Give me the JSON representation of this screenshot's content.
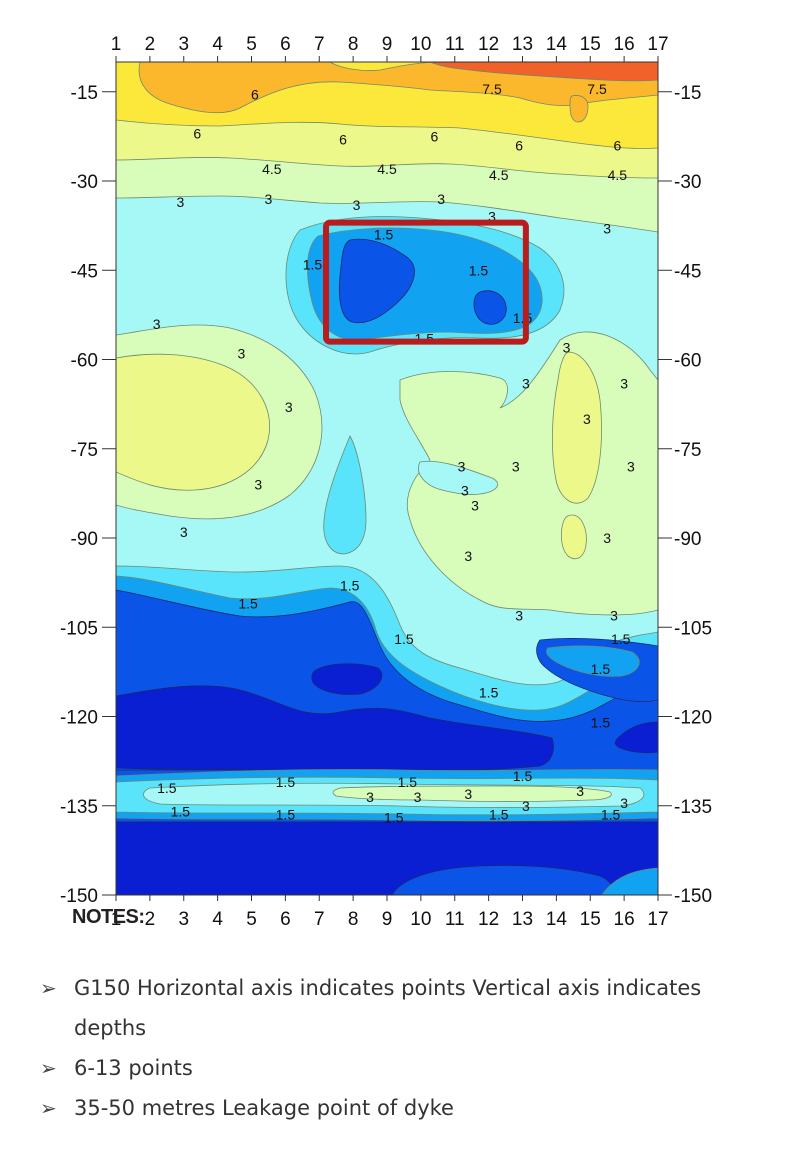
{
  "chart_data": {
    "type": "heatmap",
    "subtype": "contour",
    "x_ticks": [
      "1",
      "2",
      "3",
      "4",
      "5",
      "6",
      "7",
      "8",
      "9",
      "10",
      "11",
      "12",
      "13",
      "14",
      "15",
      "16",
      "17"
    ],
    "y_ticks": [
      "-15",
      "-30",
      "-45",
      "-60",
      "-75",
      "-90",
      "-105",
      "-120",
      "-135",
      "-150"
    ],
    "xlim": [
      1,
      17
    ],
    "ylim": [
      -150,
      -10
    ],
    "contour_levels": [
      1.5,
      3,
      4.5,
      6,
      7.5
    ],
    "contour_labels": [
      {
        "x": 12.1,
        "y": -14.5,
        "text": "7.5"
      },
      {
        "x": 15.2,
        "y": -14.5,
        "text": "7.5"
      },
      {
        "x": 5.1,
        "y": -15.5,
        "text": "6"
      },
      {
        "x": 3.4,
        "y": -22,
        "text": "6"
      },
      {
        "x": 7.7,
        "y": -23,
        "text": "6"
      },
      {
        "x": 10.4,
        "y": -22.5,
        "text": "6"
      },
      {
        "x": 12.9,
        "y": -24,
        "text": "6"
      },
      {
        "x": 15.8,
        "y": -24,
        "text": "6"
      },
      {
        "x": 5.6,
        "y": -28,
        "text": "4.5"
      },
      {
        "x": 9.0,
        "y": -28,
        "text": "4.5"
      },
      {
        "x": 12.3,
        "y": -29,
        "text": "4.5"
      },
      {
        "x": 15.8,
        "y": -29,
        "text": "4.5"
      },
      {
        "x": 2.9,
        "y": -33.5,
        "text": "3"
      },
      {
        "x": 5.5,
        "y": -33,
        "text": "3"
      },
      {
        "x": 8.1,
        "y": -34,
        "text": "3"
      },
      {
        "x": 10.6,
        "y": -33,
        "text": "3"
      },
      {
        "x": 12.1,
        "y": -36,
        "text": "3"
      },
      {
        "x": 15.5,
        "y": -38,
        "text": "3"
      },
      {
        "x": 8.9,
        "y": -39,
        "text": "1.5"
      },
      {
        "x": 6.8,
        "y": -44,
        "text": "1.5"
      },
      {
        "x": 11.7,
        "y": -45,
        "text": "1.5"
      },
      {
        "x": 13.0,
        "y": -53,
        "text": "1.5"
      },
      {
        "x": 10.1,
        "y": -56.5,
        "text": "1.5"
      },
      {
        "x": 2.2,
        "y": -54,
        "text": "3"
      },
      {
        "x": 4.7,
        "y": -59,
        "text": "3"
      },
      {
        "x": 6.1,
        "y": -68,
        "text": "3"
      },
      {
        "x": 14.3,
        "y": -58,
        "text": "3"
      },
      {
        "x": 13.1,
        "y": -64,
        "text": "3"
      },
      {
        "x": 14.9,
        "y": -70,
        "text": "3"
      },
      {
        "x": 16.0,
        "y": -64,
        "text": "3"
      },
      {
        "x": 16.2,
        "y": -78,
        "text": "3"
      },
      {
        "x": 11.2,
        "y": -78,
        "text": "3"
      },
      {
        "x": 12.8,
        "y": -78,
        "text": "3"
      },
      {
        "x": 11.3,
        "y": -82,
        "text": "3"
      },
      {
        "x": 11.6,
        "y": -84.5,
        "text": "3"
      },
      {
        "x": 5.2,
        "y": -81,
        "text": "3"
      },
      {
        "x": 3.0,
        "y": -89,
        "text": "3"
      },
      {
        "x": 15.5,
        "y": -90,
        "text": "3"
      },
      {
        "x": 11.4,
        "y": -93,
        "text": "3"
      },
      {
        "x": 12.9,
        "y": -103,
        "text": "3"
      },
      {
        "x": 15.7,
        "y": -103,
        "text": "3"
      },
      {
        "x": 4.9,
        "y": -101,
        "text": "1.5"
      },
      {
        "x": 7.9,
        "y": -98,
        "text": "1.5"
      },
      {
        "x": 9.5,
        "y": -107,
        "text": "1.5"
      },
      {
        "x": 15.9,
        "y": -107,
        "text": "1.5"
      },
      {
        "x": 15.3,
        "y": -112,
        "text": "1.5"
      },
      {
        "x": 12.0,
        "y": -116,
        "text": "1.5"
      },
      {
        "x": 15.3,
        "y": -121,
        "text": "1.5"
      },
      {
        "x": 2.5,
        "y": -132,
        "text": "1.5"
      },
      {
        "x": 6.0,
        "y": -131,
        "text": "1.5"
      },
      {
        "x": 9.6,
        "y": -131,
        "text": "1.5"
      },
      {
        "x": 13.0,
        "y": -130,
        "text": "1.5"
      },
      {
        "x": 8.5,
        "y": -133.5,
        "text": "3"
      },
      {
        "x": 9.9,
        "y": -133.5,
        "text": "3"
      },
      {
        "x": 11.4,
        "y": -133,
        "text": "3"
      },
      {
        "x": 13.1,
        "y": -135,
        "text": "3"
      },
      {
        "x": 14.7,
        "y": -132.5,
        "text": "3"
      },
      {
        "x": 16.0,
        "y": -134.5,
        "text": "3"
      },
      {
        "x": 2.9,
        "y": -136,
        "text": "1.5"
      },
      {
        "x": 6.0,
        "y": -136.5,
        "text": "1.5"
      },
      {
        "x": 9.2,
        "y": -137,
        "text": "1.5"
      },
      {
        "x": 12.3,
        "y": -136.5,
        "text": "1.5"
      },
      {
        "x": 15.6,
        "y": -136.5,
        "text": "1.5"
      }
    ],
    "highlight_box": {
      "x_range": [
        7.2,
        13.1
      ],
      "y_range": [
        -37,
        -57
      ],
      "color": "#b91c1c"
    },
    "colors": {
      "deep": "#0a1fd2",
      "blue": "#0a55e8",
      "mid_blue": "#12a2f2",
      "light_blue": "#59e4fc",
      "cyan_pale": "#a6f8f6",
      "green_pale": "#d8fcba",
      "yellow_green": "#ecf88a",
      "yellow": "#fce83a",
      "orange": "#fbb82d",
      "red_orange": "#f0622a"
    }
  },
  "notes": {
    "title": "NOTES:",
    "items": [
      "G150 Horizontal axis indicates points Vertical axis indicates depths",
      "6-13 points",
      "35-50 metres Leakage point of dyke"
    ]
  }
}
